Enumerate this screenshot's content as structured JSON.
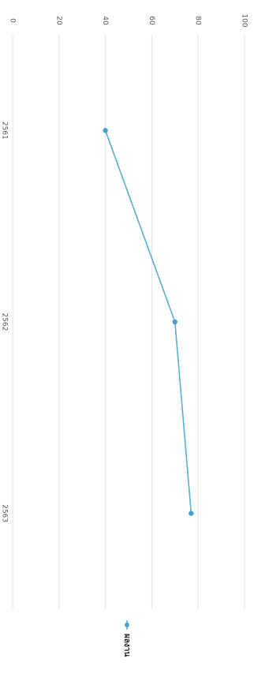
{
  "chart_data": {
    "type": "line",
    "orientation": "rotated-90-clockwise",
    "title": "",
    "xlabel": "",
    "ylabel": "",
    "categories": [
      "2561",
      "2562",
      "2563"
    ],
    "series": [
      {
        "name": "ผลงาน",
        "values": [
          40,
          70,
          77
        ]
      }
    ],
    "ylim": [
      0,
      100
    ],
    "yticks": [
      0,
      20,
      40,
      60,
      80,
      100
    ],
    "grid": true,
    "legend_position": "bottom",
    "colors": {
      "line": "#5aaed4",
      "point": "#4a9ec8",
      "grid": "#e3e3e3",
      "tick_label": "#555555",
      "legend_text": "#222222"
    }
  }
}
